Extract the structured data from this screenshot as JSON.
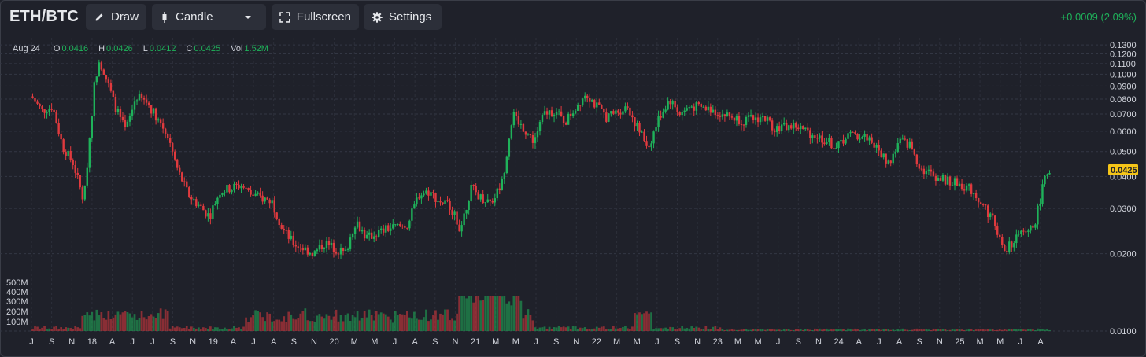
{
  "toolbar": {
    "pair": "ETH/BTC",
    "draw_label": "Draw",
    "chart_type_label": "Candle",
    "fullscreen_label": "Fullscreen",
    "settings_label": "Settings",
    "change": "+0.0009 (2.09%)"
  },
  "ohlc": {
    "date": "Aug 24",
    "open_label": "O",
    "open": "0.0416",
    "high_label": "H",
    "high": "0.0426",
    "low_label": "L",
    "low": "0.0412",
    "close_label": "C",
    "close": "0.0425",
    "vol_label": "Vol",
    "vol": "1.52M"
  },
  "colors": {
    "up": "#1fb25a",
    "down": "#e03a3e",
    "price_tag": "#f5c518",
    "background": "#1f212a"
  },
  "chart_data": {
    "type": "candlestick",
    "title": "ETH/BTC",
    "current_price": "0.0425",
    "y_scale": "log",
    "ylim": [
      0.01,
      0.132
    ],
    "y_ticks": [
      "0.1300",
      "0.1200",
      "0.1100",
      "0.1000",
      "0.0900",
      "0.0800",
      "0.0700",
      "0.0600",
      "0.0500",
      "0.0400",
      "0.0300",
      "0.0200",
      "0.0100"
    ],
    "volume_ticks": [
      "500M",
      "400M",
      "300M",
      "200M",
      "100M"
    ],
    "x_ticks": [
      "J",
      "S",
      "N",
      "18",
      "A",
      "J",
      "J",
      "S",
      "N",
      "19",
      "A",
      "J",
      "A",
      "S",
      "N",
      "20",
      "M",
      "M",
      "J",
      "A",
      "S",
      "N",
      "21",
      "M",
      "M",
      "J",
      "S",
      "N",
      "22",
      "M",
      "M",
      "J",
      "S",
      "N",
      "23",
      "M",
      "M",
      "J",
      "S",
      "N",
      "24",
      "A",
      "J",
      "A",
      "S",
      "N",
      "25",
      "M",
      "M",
      "J",
      "A"
    ],
    "grid": true,
    "close_path": [
      [
        "2017-07",
        0.082
      ],
      [
        "2017-08",
        0.072
      ],
      [
        "2017-09",
        0.075
      ],
      [
        "2017-10",
        0.052
      ],
      [
        "2017-11",
        0.045
      ],
      [
        "2017-12",
        0.032
      ],
      [
        "2018-01",
        0.09
      ],
      [
        "2018-01-15",
        0.115
      ],
      [
        "2018-02",
        0.1
      ],
      [
        "2018-03",
        0.075
      ],
      [
        "2018-04",
        0.06
      ],
      [
        "2018-05",
        0.082
      ],
      [
        "2018-06",
        0.078
      ],
      [
        "2018-07",
        0.068
      ],
      [
        "2018-08",
        0.058
      ],
      [
        "2018-09",
        0.042
      ],
      [
        "2018-10",
        0.034
      ],
      [
        "2018-12",
        0.028
      ],
      [
        "2019-01",
        0.035
      ],
      [
        "2019-03",
        0.037
      ],
      [
        "2019-04",
        0.034
      ],
      [
        "2019-06",
        0.032
      ],
      [
        "2019-07",
        0.025
      ],
      [
        "2019-08",
        0.022
      ],
      [
        "2019-10",
        0.02
      ],
      [
        "2019-11",
        0.022
      ],
      [
        "2020-01",
        0.02
      ],
      [
        "2020-02",
        0.027
      ],
      [
        "2020-03",
        0.023
      ],
      [
        "2020-05",
        0.025
      ],
      [
        "2020-07",
        0.026
      ],
      [
        "2020-08",
        0.034
      ],
      [
        "2020-09",
        0.035
      ],
      [
        "2020-10",
        0.032
      ],
      [
        "2020-11",
        0.031
      ],
      [
        "2020-12",
        0.025
      ],
      [
        "2021-01",
        0.036
      ],
      [
        "2021-02",
        0.033
      ],
      [
        "2021-03",
        0.032
      ],
      [
        "2021-04",
        0.038
      ],
      [
        "2021-05",
        0.07
      ],
      [
        "2021-06",
        0.062
      ],
      [
        "2021-07",
        0.055
      ],
      [
        "2021-08",
        0.07
      ],
      [
        "2021-09",
        0.072
      ],
      [
        "2021-10",
        0.065
      ],
      [
        "2021-11",
        0.074
      ],
      [
        "2021-12",
        0.085
      ],
      [
        "2022-01",
        0.075
      ],
      [
        "2022-02",
        0.068
      ],
      [
        "2022-04",
        0.075
      ],
      [
        "2022-05",
        0.061
      ],
      [
        "2022-06",
        0.052
      ],
      [
        "2022-07",
        0.068
      ],
      [
        "2022-08",
        0.08
      ],
      [
        "2022-09",
        0.07
      ],
      [
        "2022-10",
        0.075
      ],
      [
        "2022-11",
        0.074
      ],
      [
        "2022-12",
        0.073
      ],
      [
        "2023-01",
        0.07
      ],
      [
        "2023-03",
        0.066
      ],
      [
        "2023-05",
        0.068
      ],
      [
        "2023-06",
        0.062
      ],
      [
        "2023-08",
        0.063
      ],
      [
        "2023-09",
        0.06
      ],
      [
        "2023-11",
        0.055
      ],
      [
        "2023-12",
        0.052
      ],
      [
        "2024-01",
        0.058
      ],
      [
        "2024-03",
        0.057
      ],
      [
        "2024-04",
        0.05
      ],
      [
        "2024-05",
        0.045
      ],
      [
        "2024-06",
        0.055
      ],
      [
        "2024-07",
        0.053
      ],
      [
        "2024-08",
        0.043
      ],
      [
        "2024-10",
        0.039
      ],
      [
        "2024-12",
        0.037
      ],
      [
        "2025-01",
        0.035
      ],
      [
        "2025-03",
        0.027
      ],
      [
        "2025-04",
        0.02
      ],
      [
        "2025-05",
        0.023
      ],
      [
        "2025-06",
        0.024
      ],
      [
        "2025-07",
        0.027
      ],
      [
        "2025-08",
        0.0425
      ]
    ]
  }
}
